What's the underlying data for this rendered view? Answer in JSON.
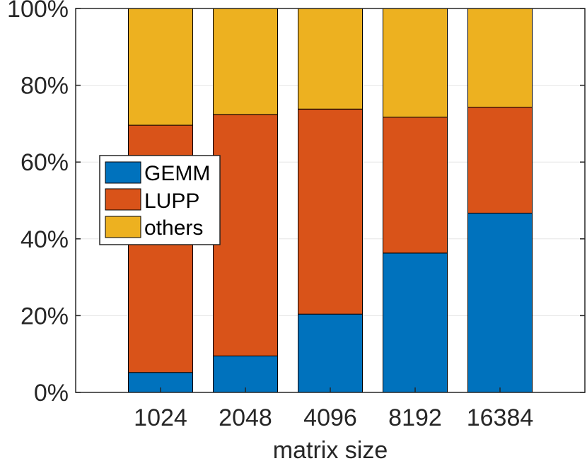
{
  "chart_data": {
    "type": "bar",
    "stacked": true,
    "title": "",
    "xlabel": "matrix size",
    "ylabel": "",
    "ylim": [
      0,
      100
    ],
    "yticks": [
      0,
      20,
      40,
      60,
      80,
      100
    ],
    "ytick_labels": [
      "0%",
      "20%",
      "40%",
      "60%",
      "80%",
      "100%"
    ],
    "categories": [
      "1024",
      "2048",
      "4096",
      "8192",
      "16384"
    ],
    "grid": true,
    "legend_position": "middle-left",
    "series": [
      {
        "name": "GEMM",
        "color": "#0072BD",
        "values": [
          5.2,
          9.5,
          20.4,
          36.3,
          46.7
        ]
      },
      {
        "name": "LUPP",
        "color": "#D95319",
        "values": [
          64.4,
          62.9,
          53.4,
          35.4,
          27.6
        ]
      },
      {
        "name": "others",
        "color": "#EDB120",
        "values": [
          30.4,
          27.6,
          26.2,
          28.3,
          25.7
        ]
      }
    ]
  }
}
